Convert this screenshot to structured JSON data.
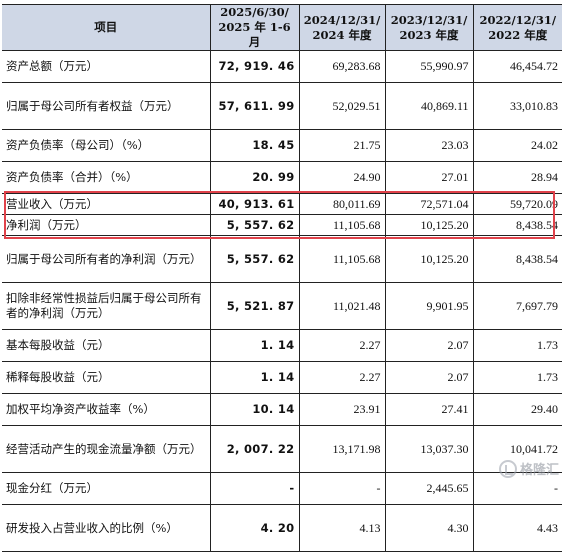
{
  "headers": [
    "项目",
    "2025/6/30/\n2025 年 1-6 月",
    "2024/12/31/\n2024 年度",
    "2023/12/31/\n2023 年度",
    "2022/12/31/\n2022 年度"
  ],
  "header_lines": [
    [
      "项目"
    ],
    [
      "2025/6/30/",
      "2025 年 1-6 月"
    ],
    [
      "2024/12/31/",
      "2024 年度"
    ],
    [
      "2023/12/31/",
      "2023 年度"
    ],
    [
      "2022/12/31/",
      "2022 年度"
    ]
  ],
  "rows": [
    {
      "label": "资产总额（万元）",
      "values": [
        "72, 919. 46",
        "69,283.68",
        "55,990.97",
        "46,454.72"
      ]
    },
    {
      "label": "归属于母公司所有者权益（万元）",
      "values": [
        "57, 611. 99",
        "52,029.51",
        "40,869.11",
        "33,010.83"
      ]
    },
    {
      "label": "资产负债率（母公司）（%）",
      "values": [
        "18. 45",
        "21.75",
        "23.03",
        "24.02"
      ]
    },
    {
      "label": "资产负债率（合并）（%）",
      "values": [
        "20. 99",
        "24.90",
        "27.01",
        "28.94"
      ]
    },
    {
      "label": "营业收入（万元）",
      "values": [
        "40, 913. 61",
        "80,011.69",
        "72,571.04",
        "59,720.09"
      ]
    },
    {
      "label": "净利润（万元）",
      "values": [
        "5, 557. 62",
        "11,105.68",
        "10,125.20",
        "8,438.54"
      ]
    },
    {
      "label": "归属于母公司所有者的净利润（万元）",
      "values": [
        "5, 557. 62",
        "11,105.68",
        "10,125.20",
        "8,438.54"
      ]
    },
    {
      "label": "扣除非经常性损益后归属于母公司所有者的净利润（万元）",
      "values": [
        "5, 521. 87",
        "11,021.48",
        "9,901.95",
        "7,697.79"
      ]
    },
    {
      "label": "基本每股收益（元）",
      "values": [
        "1. 14",
        "2.27",
        "2.07",
        "1.73"
      ]
    },
    {
      "label": "稀释每股收益（元）",
      "values": [
        "1. 14",
        "2.27",
        "2.07",
        "1.73"
      ]
    },
    {
      "label": "加权平均净资产收益率（%）",
      "values": [
        "10. 14",
        "23.91",
        "27.41",
        "29.40"
      ]
    },
    {
      "label": "经营活动产生的现金流量净额（万元）",
      "values": [
        "2, 007. 22",
        "13,171.98",
        "13,037.30",
        "10,041.72"
      ]
    },
    {
      "label": "现金分红（万元）",
      "values": [
        "-",
        "-",
        "2,445.65",
        "-"
      ]
    },
    {
      "label": "研发投入占营业收入的比例（%）",
      "values": [
        "4. 20",
        "4.13",
        "4.30",
        "4.43"
      ]
    }
  ],
  "highlight": {
    "rows": [
      "营业收入（万元）",
      "净利润（万元）"
    ],
    "color": "#e0424a"
  },
  "colors": {
    "header_bg": "#cfd7e6",
    "border": "#222222"
  },
  "watermark": {
    "text": "格隆汇",
    "icon": "logo-icon"
  }
}
